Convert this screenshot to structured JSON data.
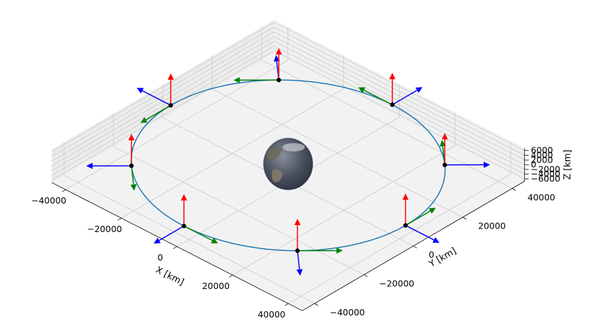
{
  "chart_data": {
    "type": "3d-orbit",
    "title": "",
    "xlabel": "X [km]",
    "ylabel": "Y [km]",
    "zlabel": "Z [km]",
    "x_ticks": [
      "−40000",
      "−20000",
      "0",
      "20000",
      "40000"
    ],
    "x_tick_values": [
      -40000,
      -20000,
      0,
      20000,
      40000
    ],
    "y_ticks": [
      "−40000",
      "−20000",
      "0",
      "20000",
      "40000"
    ],
    "y_tick_values": [
      -40000,
      -20000,
      0,
      20000,
      40000
    ],
    "z_ticks": [
      "−6000",
      "−4000",
      "−2000",
      "0",
      "2000",
      "4000",
      "6000"
    ],
    "z_tick_values": [
      -6000,
      -4000,
      -2000,
      0,
      2000,
      4000,
      6000
    ],
    "xlim": [
      -45000,
      45000
    ],
    "ylim": [
      -45000,
      45000
    ],
    "zlim": [
      -7000,
      7000
    ],
    "grid": true,
    "orbit": {
      "radius_km": 42164,
      "color": "#1f77b4"
    },
    "earth": {
      "radius_km": 6371
    },
    "frames": {
      "count": 8,
      "angles_deg": [
        0,
        45,
        90,
        135,
        180,
        225,
        270,
        315
      ],
      "point_color": "#000000",
      "arrow_colors": {
        "radial": "#0000ff",
        "along_track": "#008000",
        "normal": "#ff0000"
      }
    }
  }
}
